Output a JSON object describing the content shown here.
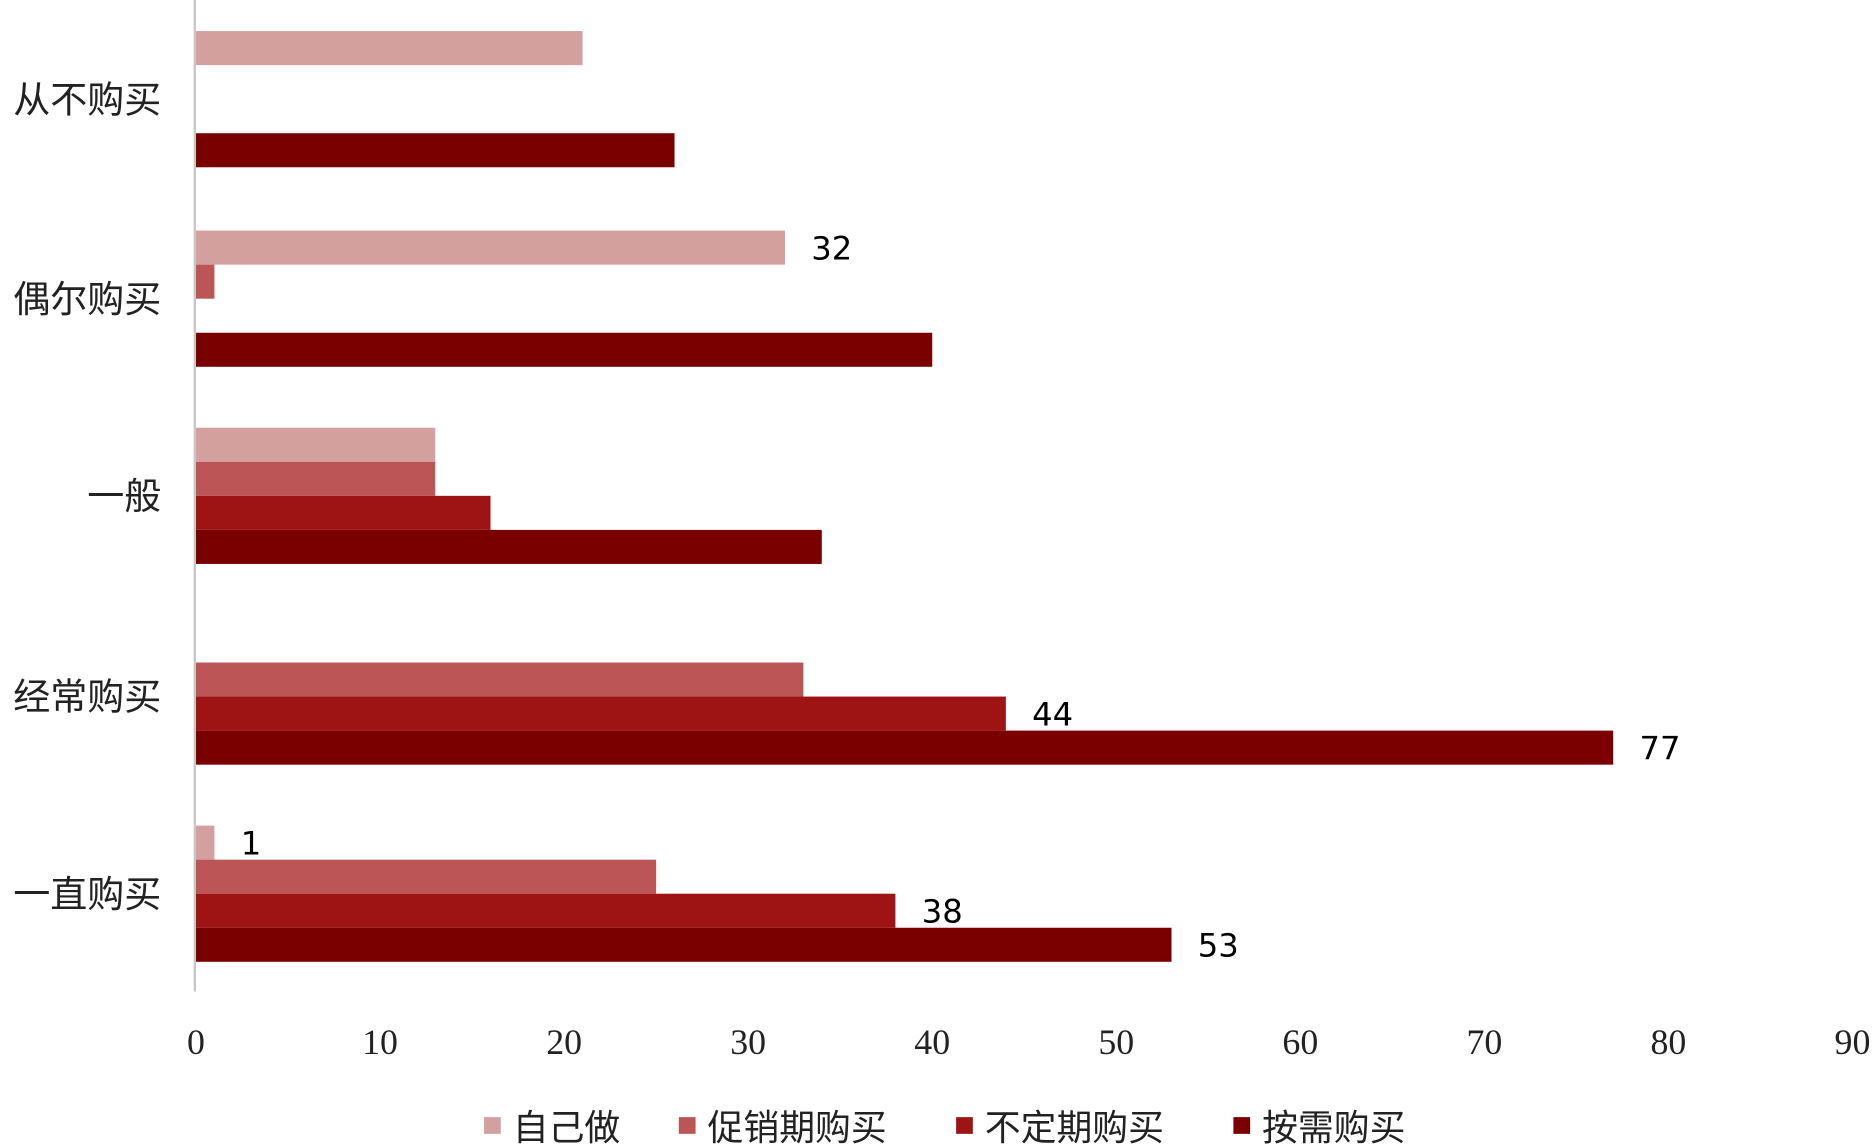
{
  "chart_data": {
    "type": "bar",
    "orientation": "horizontal",
    "title": "",
    "xlabel": "",
    "ylabel": "",
    "xlim": [
      0,
      90
    ],
    "xticks": [
      0,
      10,
      20,
      30,
      40,
      50,
      60,
      70,
      80,
      90
    ],
    "grid": false,
    "legend_position": "bottom",
    "categories": [
      "从不购买",
      "偶尔购买",
      "一般",
      "经常购买",
      "一直购买"
    ],
    "series": [
      {
        "name": "自己做",
        "color": "#D4A09E",
        "values": [
          21,
          32,
          13,
          0,
          1
        ],
        "labels": [
          null,
          "32",
          null,
          null,
          "1"
        ]
      },
      {
        "name": "促销期购买",
        "color": "#BC5656",
        "values": [
          0,
          1,
          13,
          33,
          25
        ],
        "labels": [
          null,
          null,
          null,
          null,
          null
        ]
      },
      {
        "name": "不定期购买",
        "color": "#9E1414",
        "values": [
          0,
          0,
          16,
          44,
          38
        ],
        "labels": [
          null,
          null,
          null,
          "44",
          "38"
        ]
      },
      {
        "name": "按需购买",
        "color": "#7A0000",
        "values": [
          26,
          40,
          34,
          77,
          53
        ],
        "labels": [
          null,
          null,
          null,
          "77",
          "53"
        ]
      }
    ]
  }
}
